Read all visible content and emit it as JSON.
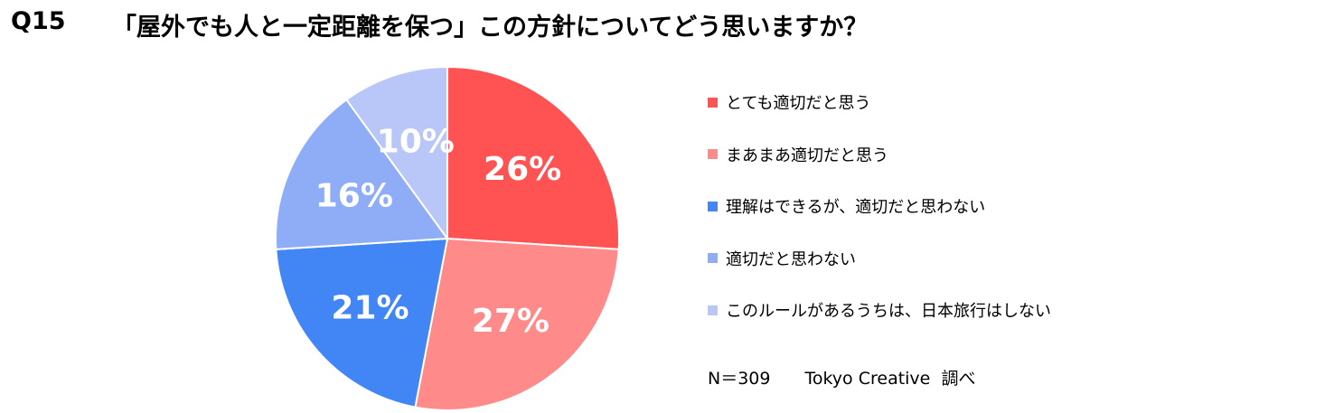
{
  "header": {
    "question_number": "Q15",
    "title": "「屋外でも人と一定距離を保つ」この方針についてどう思いますか？"
  },
  "chart_data": {
    "type": "pie",
    "start_angle_deg": 0,
    "direction": "clockwise",
    "slices": [
      {
        "label": "とても適切だと思う",
        "value": 26,
        "display": "26%",
        "color": "#ff5252"
      },
      {
        "label": "まあまあ適切だと思う",
        "value": 27,
        "display": "27%",
        "color": "#ff8a8a"
      },
      {
        "label": "理解はできるが、適切だと思わない",
        "value": 21,
        "display": "21%",
        "color": "#4285f4"
      },
      {
        "label": "適切だと思わない",
        "value": 16,
        "display": "16%",
        "color": "#8fadf7"
      },
      {
        "label": "このルールがあるうちは、日本旅行はしない",
        "value": 10,
        "display": "10%",
        "color": "#b8c7f8"
      }
    ],
    "legend_position": "right"
  },
  "footer": {
    "note": "N＝309　　Tokyo Creative  調べ"
  }
}
